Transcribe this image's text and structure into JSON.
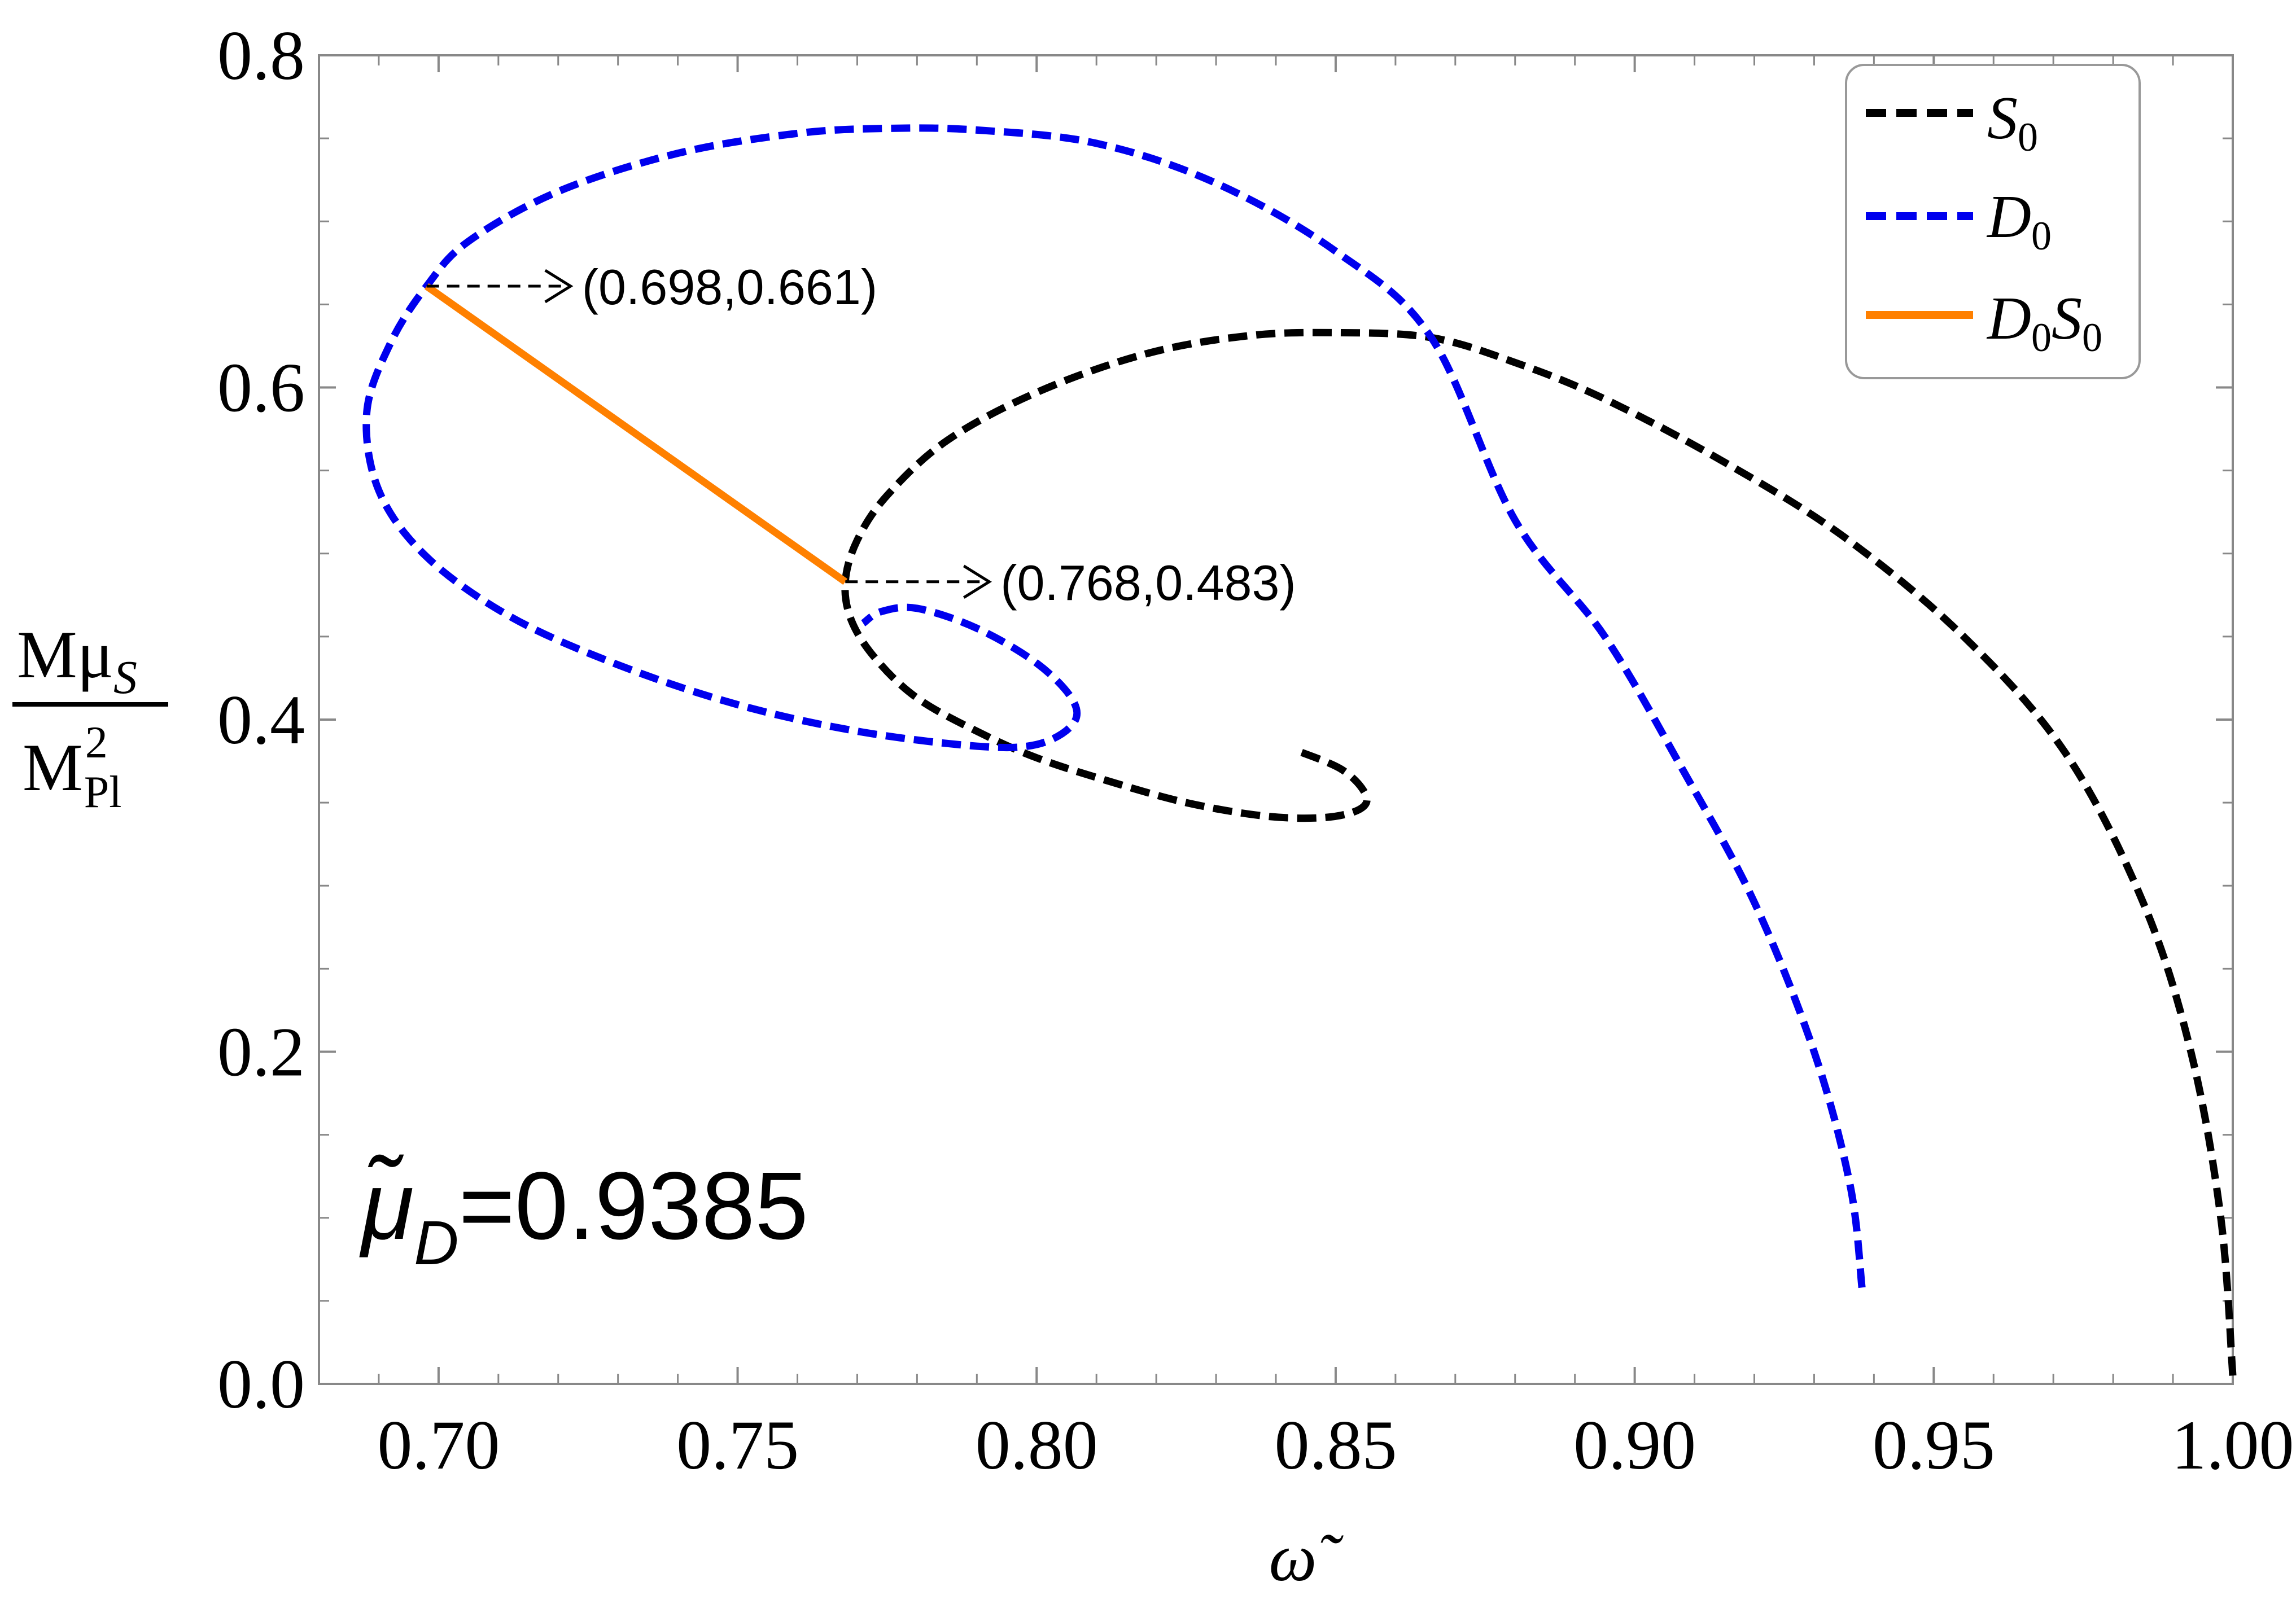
{
  "colors": {
    "S0": "#000000",
    "D0": "#0000ee",
    "D0S0": "#ff8000",
    "frame": "#888888",
    "annotation_arrow": "#000000"
  },
  "chart_data": {
    "type": "line",
    "xlabel": "ω̃",
    "ylabel": {
      "numerator": "Mμ",
      "numerator_sub": "S",
      "denominator": "M",
      "denominator_sup": "2",
      "denominator_sub": "Pl"
    },
    "xlim": [
      0.68,
      1.0
    ],
    "ylim": [
      0.0,
      0.8
    ],
    "x_ticks": [
      "0.70",
      "0.75",
      "0.80",
      "0.85",
      "0.90",
      "0.95",
      "1.00"
    ],
    "y_ticks": [
      "0.0",
      "0.2",
      "0.4",
      "0.6",
      "0.8"
    ],
    "grid": false,
    "legend_position": "top-right",
    "legend": [
      {
        "key": "S0",
        "main": "S",
        "sub": "0",
        "style": "dashed"
      },
      {
        "key": "D0",
        "main": "D",
        "sub": "0",
        "style": "dashed"
      },
      {
        "key": "D0S0",
        "main": "D",
        "sub": "0",
        "main2": "S",
        "sub2": "0",
        "style": "solid"
      }
    ],
    "inset_label": {
      "main": "μ̃",
      "sub": "D",
      "value": "=0.9385"
    },
    "annotations": [
      {
        "label": "(0.698,0.661)",
        "point": [
          0.698,
          0.661
        ]
      },
      {
        "label": "(0.768,0.483)",
        "point": [
          0.768,
          0.483
        ]
      }
    ],
    "series": [
      {
        "key": "S0",
        "style": "dashed",
        "x": [
          1.0,
          0.998,
          0.993,
          0.985,
          0.972,
          0.955,
          0.935,
          0.915,
          0.895,
          0.88,
          0.866,
          0.85,
          0.835,
          0.818,
          0.8,
          0.785,
          0.775,
          0.77,
          0.768,
          0.769,
          0.773,
          0.78,
          0.79,
          0.8,
          0.812,
          0.825,
          0.838,
          0.848,
          0.854,
          0.855,
          0.851,
          0.843
        ],
        "y": [
          0.005,
          0.1,
          0.2,
          0.29,
          0.38,
          0.45,
          0.51,
          0.555,
          0.593,
          0.615,
          0.63,
          0.633,
          0.631,
          0.62,
          0.597,
          0.568,
          0.535,
          0.508,
          0.483,
          0.46,
          0.437,
          0.413,
          0.393,
          0.377,
          0.363,
          0.35,
          0.342,
          0.341,
          0.346,
          0.355,
          0.37,
          0.382
        ]
      },
      {
        "key": "D0",
        "style": "dashed",
        "x": [
          0.938,
          0.936,
          0.93,
          0.92,
          0.908,
          0.895,
          0.88,
          0.866,
          0.85,
          0.83,
          0.81,
          0.79,
          0.775,
          0.76,
          0.74,
          0.72,
          0.705,
          0.698,
          0.692,
          0.688,
          0.69,
          0.698,
          0.712,
          0.73,
          0.75,
          0.77,
          0.79,
          0.8,
          0.806,
          0.806,
          0.8,
          0.79,
          0.78,
          0.774,
          0.771
        ],
        "y": [
          0.058,
          0.12,
          0.2,
          0.29,
          0.37,
          0.45,
          0.52,
          0.63,
          0.682,
          0.723,
          0.747,
          0.755,
          0.756,
          0.753,
          0.741,
          0.718,
          0.688,
          0.661,
          0.627,
          0.585,
          0.538,
          0.498,
          0.462,
          0.433,
          0.409,
          0.393,
          0.384,
          0.385,
          0.397,
          0.412,
          0.434,
          0.455,
          0.467,
          0.465,
          0.458
        ]
      },
      {
        "key": "D0S0",
        "style": "solid",
        "x": [
          0.698,
          0.768
        ],
        "y": [
          0.661,
          0.483
        ]
      }
    ]
  }
}
